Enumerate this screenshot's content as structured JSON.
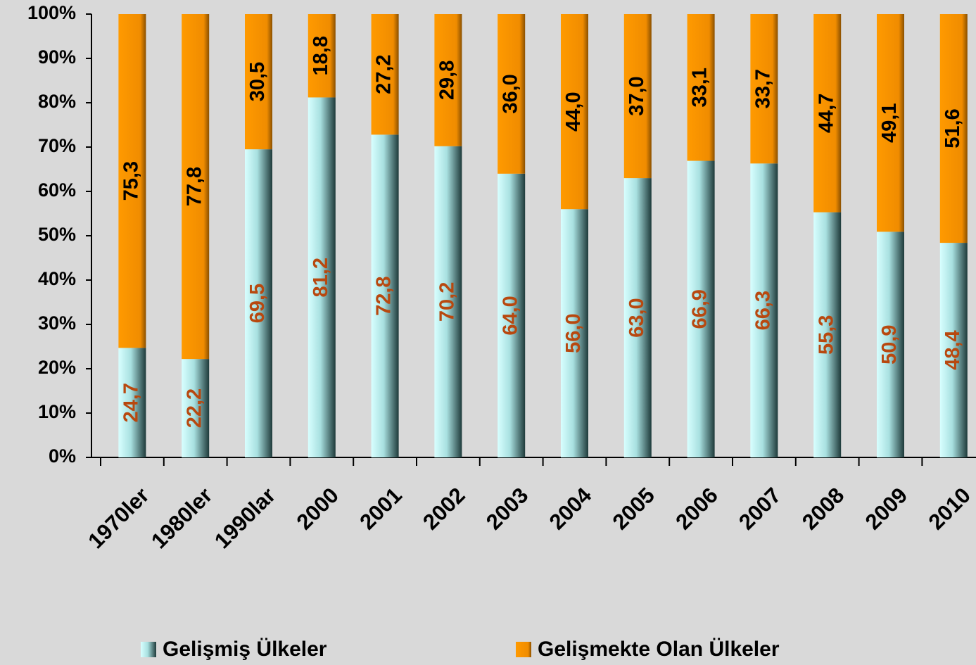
{
  "chart_data": {
    "type": "stacked_bar",
    "categories": [
      "1970ler",
      "1980ler",
      "1990lar",
      "2000",
      "2001",
      "2002",
      "2003",
      "2004",
      "2005",
      "2006",
      "2007",
      "2008",
      "2009",
      "2010"
    ],
    "series": [
      {
        "name": "Gelişmiş Ülkeler",
        "color": "#c8fafa",
        "values": [
          24.7,
          22.2,
          69.5,
          81.2,
          72.8,
          70.2,
          64.0,
          56.0,
          63.0,
          66.9,
          66.3,
          55.3,
          50.9,
          48.4
        ],
        "value_labels": [
          "24,7",
          "22,2",
          "69,5",
          "81,2",
          "72,8",
          "70,2",
          "64,0",
          "56,0",
          "63,0",
          "66,9",
          "66,3",
          "55,3",
          "50,9",
          "48,4"
        ]
      },
      {
        "name": "Gelişmekte Olan Ülkeler",
        "color": "#ff9900",
        "values": [
          75.3,
          77.8,
          30.5,
          18.8,
          27.2,
          29.8,
          36.0,
          44.0,
          37.0,
          33.1,
          33.7,
          44.7,
          49.1,
          51.6
        ],
        "value_labels": [
          "75,3",
          "77,8",
          "30,5",
          "18,8",
          "27,2",
          "29,8",
          "36,0",
          "44,0",
          "37,0",
          "33,1",
          "33,7",
          "44,7",
          "49,1",
          "51,6"
        ]
      }
    ],
    "ylim": [
      0,
      100
    ],
    "yticks": [
      {
        "value": 0,
        "label": "0%"
      },
      {
        "value": 10,
        "label": "10%"
      },
      {
        "value": 20,
        "label": "20%"
      },
      {
        "value": 30,
        "label": "30%"
      },
      {
        "value": 40,
        "label": "40%"
      },
      {
        "value": 50,
        "label": "50%"
      },
      {
        "value": 60,
        "label": "60%"
      },
      {
        "value": 70,
        "label": "70%"
      },
      {
        "value": 80,
        "label": "80%"
      },
      {
        "value": 90,
        "label": "90%"
      },
      {
        "value": 100,
        "label": "100%"
      }
    ],
    "grid": false,
    "legend": "bottom"
  }
}
